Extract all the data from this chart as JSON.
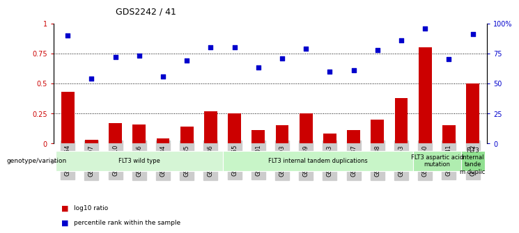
{
  "title": "GDS2242 / 41",
  "categories": [
    "GSM48254",
    "GSM48507",
    "GSM48510",
    "GSM48546",
    "GSM48584",
    "GSM48585",
    "GSM48586",
    "GSM48255",
    "GSM48501",
    "GSM48503",
    "GSM48539",
    "GSM48543",
    "GSM48587",
    "GSM48588",
    "GSM48253",
    "GSM48350",
    "GSM48541",
    "GSM48252"
  ],
  "bar_values": [
    0.43,
    0.03,
    0.17,
    0.16,
    0.04,
    0.14,
    0.27,
    0.25,
    0.11,
    0.15,
    0.25,
    0.08,
    0.11,
    0.2,
    0.38,
    0.8,
    0.15,
    0.5
  ],
  "dot_values": [
    0.9,
    0.54,
    0.72,
    0.73,
    0.56,
    0.69,
    0.8,
    0.8,
    0.63,
    0.71,
    0.79,
    0.6,
    0.61,
    0.78,
    0.86,
    0.96,
    0.7,
    0.91
  ],
  "bar_color": "#cc0000",
  "dot_color": "#0000cc",
  "ylim_left": [
    0,
    1.0
  ],
  "yticks_left": [
    0,
    0.25,
    0.5,
    0.75,
    1.0
  ],
  "ytick_labels_left": [
    "0",
    "0.25",
    "0.5",
    "0.75",
    "1"
  ],
  "yticks_right": [
    0,
    25,
    50,
    75,
    100
  ],
  "ytick_labels_right": [
    "0",
    "25",
    "50",
    "75",
    "100%"
  ],
  "groups": [
    {
      "label": "FLT3 wild type",
      "start": 0,
      "end": 7,
      "color": "#d5f5d5"
    },
    {
      "label": "FLT3 internal tandem duplications",
      "start": 7,
      "end": 15,
      "color": "#c8f5c8"
    },
    {
      "label": "FLT3 aspartic acid\nmutation",
      "start": 15,
      "end": 17,
      "color": "#b0edb0"
    },
    {
      "label": "FLT3\ninternal\ntande\nm duplic",
      "start": 17,
      "end": 18,
      "color": "#90e090"
    }
  ],
  "legend_bar_label": "log10 ratio",
  "legend_dot_label": "percentile rank within the sample",
  "genotype_label": "genotype/variation",
  "tick_bg_color": "#cccccc"
}
